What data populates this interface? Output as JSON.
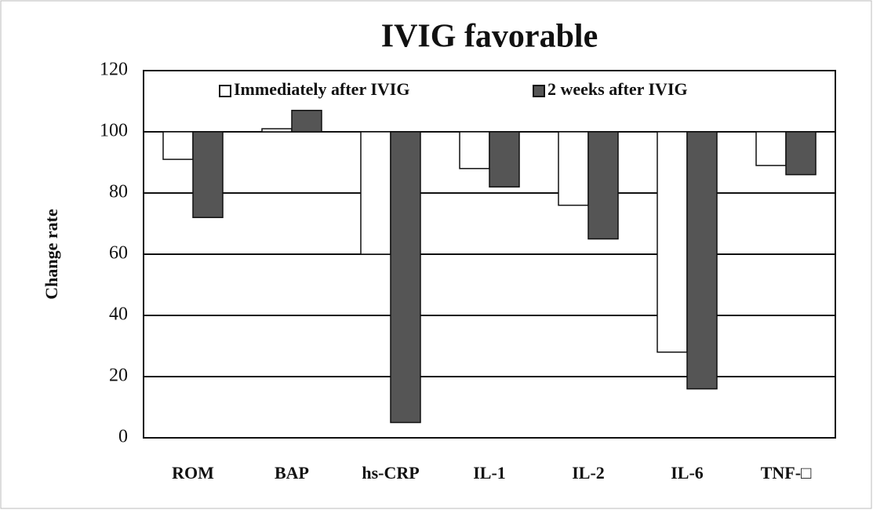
{
  "chart_data": {
    "type": "bar",
    "title": "IVIG favorable",
    "y_label": "Change rate",
    "categories": [
      "ROM",
      "BAP",
      "hs-CRP",
      "IL-1",
      "IL-2",
      "IL-6",
      "TNF-□"
    ],
    "series": [
      {
        "name": "Immediately after IVIG",
        "color": "#ffffff",
        "values": [
          91,
          101,
          60,
          88,
          76,
          28,
          89
        ]
      },
      {
        "name": "2 weeks after IVIG",
        "color": "#555555",
        "values": [
          72,
          107,
          5,
          82,
          65,
          16,
          86
        ]
      }
    ],
    "baseline": 100,
    "ylim": [
      0,
      120
    ],
    "yticks": [
      0,
      20,
      40,
      60,
      80,
      100,
      120
    ],
    "grid": true,
    "legend": "top"
  }
}
